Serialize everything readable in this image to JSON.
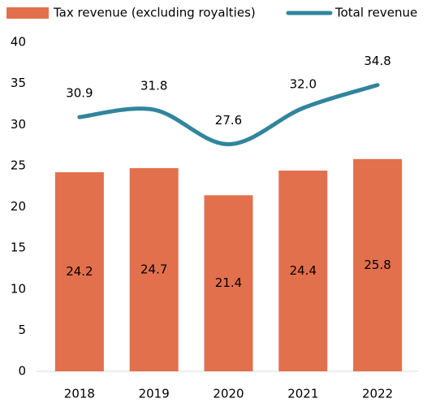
{
  "chart_data": {
    "type": "bar",
    "categories": [
      "2018",
      "2019",
      "2020",
      "2021",
      "2022"
    ],
    "series": [
      {
        "name": "Tax revenue (excluding royalties)",
        "type": "bar",
        "color": "#e2704d",
        "values": [
          24.2,
          24.7,
          21.4,
          24.4,
          25.8
        ]
      },
      {
        "name": "Total revenue",
        "type": "line",
        "color": "#31859c",
        "values": [
          30.9,
          31.8,
          27.6,
          32.0,
          34.8
        ],
        "value_labels": [
          "30.9",
          "31.8",
          "27.6",
          "32.0",
          "34.8"
        ]
      }
    ],
    "ylim": [
      0,
      40
    ],
    "yticks": [
      0,
      5,
      10,
      15,
      20,
      25,
      30,
      35,
      40
    ],
    "grid": false,
    "legend": "top"
  }
}
